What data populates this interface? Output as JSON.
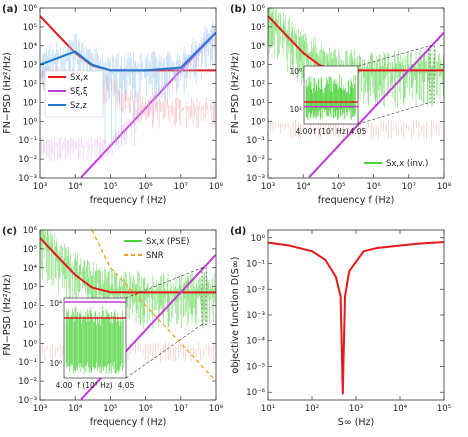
{
  "chart_data": [
    {
      "id": "a",
      "panel_label": "(a)",
      "type": "line",
      "x_scale": "log",
      "y_scale": "log",
      "xlim": [
        1000,
        100000000
      ],
      "ylim": [
        0.001,
        1000000
      ],
      "xlabel": "frequency f (Hz)",
      "ylabel": "FN−PSD (Hz²/Hz)",
      "x_ticks": [
        1000,
        10000,
        100000,
        1000000,
        10000000,
        100000000
      ],
      "x_ticklabels": [
        "10³",
        "10⁴",
        "10⁵",
        "10⁶",
        "10⁷",
        "10⁸"
      ],
      "y_ticks": [
        0.001,
        0.01,
        0.1,
        1,
        10,
        100,
        1000,
        10000,
        100000,
        1000000
      ],
      "y_ticklabels": [
        "10⁻³",
        "10⁻²",
        "10⁻¹",
        "10⁰",
        "10¹",
        "10²",
        "10³",
        "10⁴",
        "10⁵",
        "10⁶"
      ],
      "legend": {
        "position": "middle-left",
        "entries": [
          {
            "label": "Sx,x",
            "color": "#e41a1c"
          },
          {
            "label": "Sξ,ξ",
            "color": "#c03ad8"
          },
          {
            "label": "Sz,z",
            "color": "#1f78d1"
          }
        ]
      },
      "series": [
        {
          "name": "Sx,x",
          "color": "#e41a1c",
          "kind": "smooth",
          "x": [
            1000,
            3000,
            10000,
            30000,
            100000,
            300000,
            1000000,
            10000000,
            100000000
          ],
          "y": [
            380000,
            43000,
            4200,
            900,
            510,
            500,
            500,
            500,
            500
          ]
        },
        {
          "name": "Sξ,ξ",
          "color": "#c03ad8",
          "kind": "smooth",
          "x": [
            1000,
            100000,
            1000000,
            10000000,
            100000000
          ],
          "y": [
            5e-06,
            0.05,
            5,
            500,
            50000
          ]
        },
        {
          "name": "Sz,z",
          "color": "#1f78d1",
          "kind": "noisy-spikes",
          "x": [
            1000,
            10000,
            30000,
            100000,
            1000000,
            10000000,
            100000000
          ],
          "y": [
            1000,
            5000,
            1000,
            500,
            500,
            700,
            50000
          ]
        }
      ]
    },
    {
      "id": "b",
      "panel_label": "(b)",
      "type": "line",
      "x_scale": "log",
      "y_scale": "log",
      "xlim": [
        1000,
        100000000
      ],
      "ylim": [
        0.001,
        1000000
      ],
      "xlabel": "frequency f (Hz)",
      "ylabel": "FN−PSD (Hz²/Hz)",
      "x_ticks": [
        1000,
        10000,
        100000,
        1000000,
        10000000,
        100000000
      ],
      "x_ticklabels": [
        "10³",
        "10⁴",
        "10⁵",
        "10⁶",
        "10⁷",
        "10⁸"
      ],
      "y_ticks": [
        0.001,
        0.01,
        0.1,
        1,
        10,
        100,
        1000,
        10000,
        100000,
        1000000
      ],
      "y_ticklabels": [
        "10⁻³",
        "10⁻²",
        "10⁻¹",
        "10⁰",
        "10¹",
        "10²",
        "10³",
        "10⁴",
        "10⁵",
        "10⁶"
      ],
      "legend": {
        "position": "bottom-right",
        "entries": [
          {
            "label": "Sx,x (inv.)",
            "color": "#4cd43c"
          }
        ]
      },
      "series": [
        {
          "name": "Sx,x (inv.)",
          "color": "#4cd43c",
          "kind": "noisy",
          "x": [
            1000,
            10000,
            100000,
            1000000,
            10000000,
            100000000
          ],
          "y": [
            300000,
            5000,
            600,
            400,
            500,
            600
          ]
        },
        {
          "name": "Sx,x",
          "color": "#e41a1c",
          "kind": "smooth",
          "x": [
            1000,
            3000,
            10000,
            30000,
            100000,
            300000,
            1000000,
            10000000,
            100000000
          ],
          "y": [
            380000,
            43000,
            4200,
            900,
            510,
            500,
            500,
            500,
            500
          ]
        },
        {
          "name": "Sξ,ξ",
          "color": "#c03ad8",
          "kind": "smooth",
          "x": [
            1000,
            100000,
            1000000,
            10000000,
            100000000
          ],
          "y": [
            5e-06,
            0.05,
            5,
            500,
            50000
          ]
        }
      ],
      "inset": {
        "x_range": [
          4.0,
          4.05
        ],
        "x_ticklabels": [
          "4.00",
          "4.05"
        ],
        "xlabel": "f (10⁷ Hz)",
        "y_ticklabels": [
          "10²",
          "10⁶"
        ]
      }
    },
    {
      "id": "c",
      "panel_label": "(c)",
      "type": "line",
      "x_scale": "log",
      "y_scale": "log",
      "xlim": [
        1000,
        100000000
      ],
      "ylim": [
        0.001,
        1000000
      ],
      "xlabel": "frequency f (Hz)",
      "ylabel": "FN−PSD (Hz²/Hz)",
      "x_ticks": [
        1000,
        10000,
        100000,
        1000000,
        10000000,
        100000000
      ],
      "x_ticklabels": [
        "10³",
        "10⁴",
        "10⁵",
        "10⁶",
        "10⁷",
        "10⁸"
      ],
      "y_ticks": [
        0.001,
        0.01,
        0.1,
        1,
        10,
        100,
        1000,
        10000,
        100000,
        1000000
      ],
      "y_ticklabels": [
        "10⁻³",
        "10⁻²",
        "10⁻¹",
        "10⁰",
        "10¹",
        "10²",
        "10³",
        "10⁴",
        "10⁵",
        "10⁶"
      ],
      "legend": {
        "position": "top-right",
        "entries": [
          {
            "label": "Sx,x (PSE)",
            "color": "#4cd43c"
          },
          {
            "label": "SNR",
            "color": "#f0a020"
          }
        ]
      },
      "series": [
        {
          "name": "Sx,x (PSE)",
          "color": "#4cd43c",
          "kind": "noisy",
          "x": [
            1000,
            10000,
            100000,
            1000000,
            10000000,
            100000000
          ],
          "y": [
            300000,
            6000,
            800,
            500,
            500,
            500
          ]
        },
        {
          "name": "Sx,x",
          "color": "#e41a1c",
          "kind": "smooth",
          "x": [
            1000,
            3000,
            10000,
            30000,
            100000,
            300000,
            1000000,
            10000000,
            100000000
          ],
          "y": [
            380000,
            43000,
            4200,
            900,
            510,
            500,
            500,
            500,
            500
          ]
        },
        {
          "name": "Sξ,ξ",
          "color": "#c03ad8",
          "kind": "smooth",
          "x": [
            1000,
            100000,
            1000000,
            10000000,
            100000000
          ],
          "y": [
            5e-06,
            0.05,
            5,
            500,
            50000
          ]
        },
        {
          "name": "SNR",
          "color": "#f0a020",
          "kind": "dashed",
          "x": [
            30000,
            100000,
            1000000,
            10000000,
            100000000
          ],
          "y": [
            1000000,
            10000,
            100,
            1,
            0.01
          ]
        }
      ],
      "inset": {
        "x_range": [
          4.0,
          4.05
        ],
        "x_ticklabels": [
          "4.00",
          "4.05"
        ],
        "xlabel": "f (10⁷ Hz)",
        "y_ticklabels": [
          "10⁰",
          "10⁴"
        ]
      }
    },
    {
      "id": "d",
      "panel_label": "(d)",
      "type": "line",
      "x_scale": "log",
      "y_scale": "log",
      "xlim": [
        10,
        100000
      ],
      "ylim": [
        5e-07,
        2
      ],
      "xlabel": "S∞ (Hz)",
      "ylabel": "objective function D(S∞)",
      "x_ticks": [
        10,
        100,
        1000,
        10000,
        100000
      ],
      "x_ticklabels": [
        "10¹",
        "10²",
        "10³",
        "10⁴",
        "10⁵"
      ],
      "y_ticks": [
        1e-06,
        1e-05,
        0.0001,
        0.001,
        0.01,
        0.1,
        1
      ],
      "y_ticklabels": [
        "10⁻⁶",
        "10⁻⁵",
        "10⁻⁴",
        "10⁻³",
        "10⁻²",
        "10⁻¹",
        "10⁰"
      ],
      "series": [
        {
          "name": "D(S∞)",
          "color": "#e41a1c",
          "kind": "smooth",
          "x": [
            10,
            30,
            100,
            200,
            350,
            450,
            500,
            560,
            700,
            1500,
            3000,
            10000,
            30000,
            100000
          ],
          "y": [
            0.65,
            0.5,
            0.3,
            0.14,
            0.03,
            0.005,
            7e-07,
            0.005,
            0.05,
            0.3,
            0.4,
            0.5,
            0.6,
            0.68
          ]
        }
      ]
    }
  ]
}
